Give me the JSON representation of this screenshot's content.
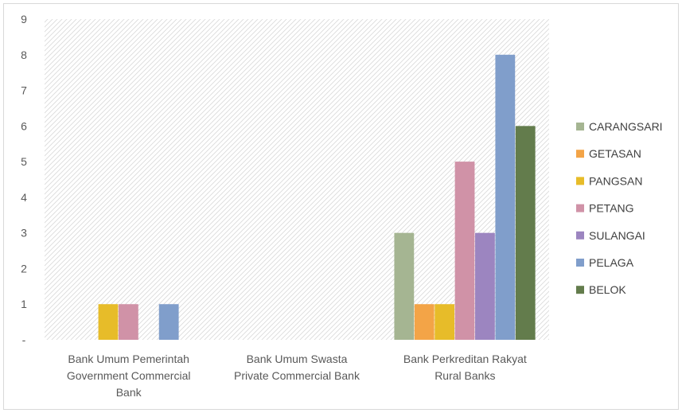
{
  "chart_data": {
    "type": "bar",
    "categories": [
      [
        "Bank Umum Pemerintah",
        "Government Commercial",
        "Bank"
      ],
      [
        "Bank Umum Swasta",
        "Private Commercial Bank"
      ],
      [
        "Bank Perkreditan Rakyat",
        "Rural Banks"
      ]
    ],
    "series": [
      {
        "name": "CARANGSARI",
        "color": "#a5b592",
        "values": [
          0,
          0,
          3
        ]
      },
      {
        "name": "GETASAN",
        "color": "#f3a447",
        "values": [
          0,
          0,
          1
        ]
      },
      {
        "name": "PANGSAN",
        "color": "#e7bc29",
        "values": [
          1,
          0,
          1
        ]
      },
      {
        "name": "PETANG",
        "color": "#d092a7",
        "values": [
          1,
          0,
          5
        ]
      },
      {
        "name": "SULANGAI",
        "color": "#9c85c0",
        "values": [
          0,
          0,
          3
        ]
      },
      {
        "name": "PELAGA",
        "color": "#809ecb",
        "values": [
          1,
          0,
          8
        ]
      },
      {
        "name": "BELOK",
        "color": "#637c4c",
        "values": [
          0,
          0,
          6
        ]
      }
    ],
    "y_ticks": [
      "-",
      "1",
      "2",
      "3",
      "4",
      "5",
      "6",
      "7",
      "8",
      "9"
    ],
    "ylim": [
      0,
      9
    ],
    "grid": false,
    "plot_background": "diagonal-hatch",
    "legend_position": "right"
  }
}
